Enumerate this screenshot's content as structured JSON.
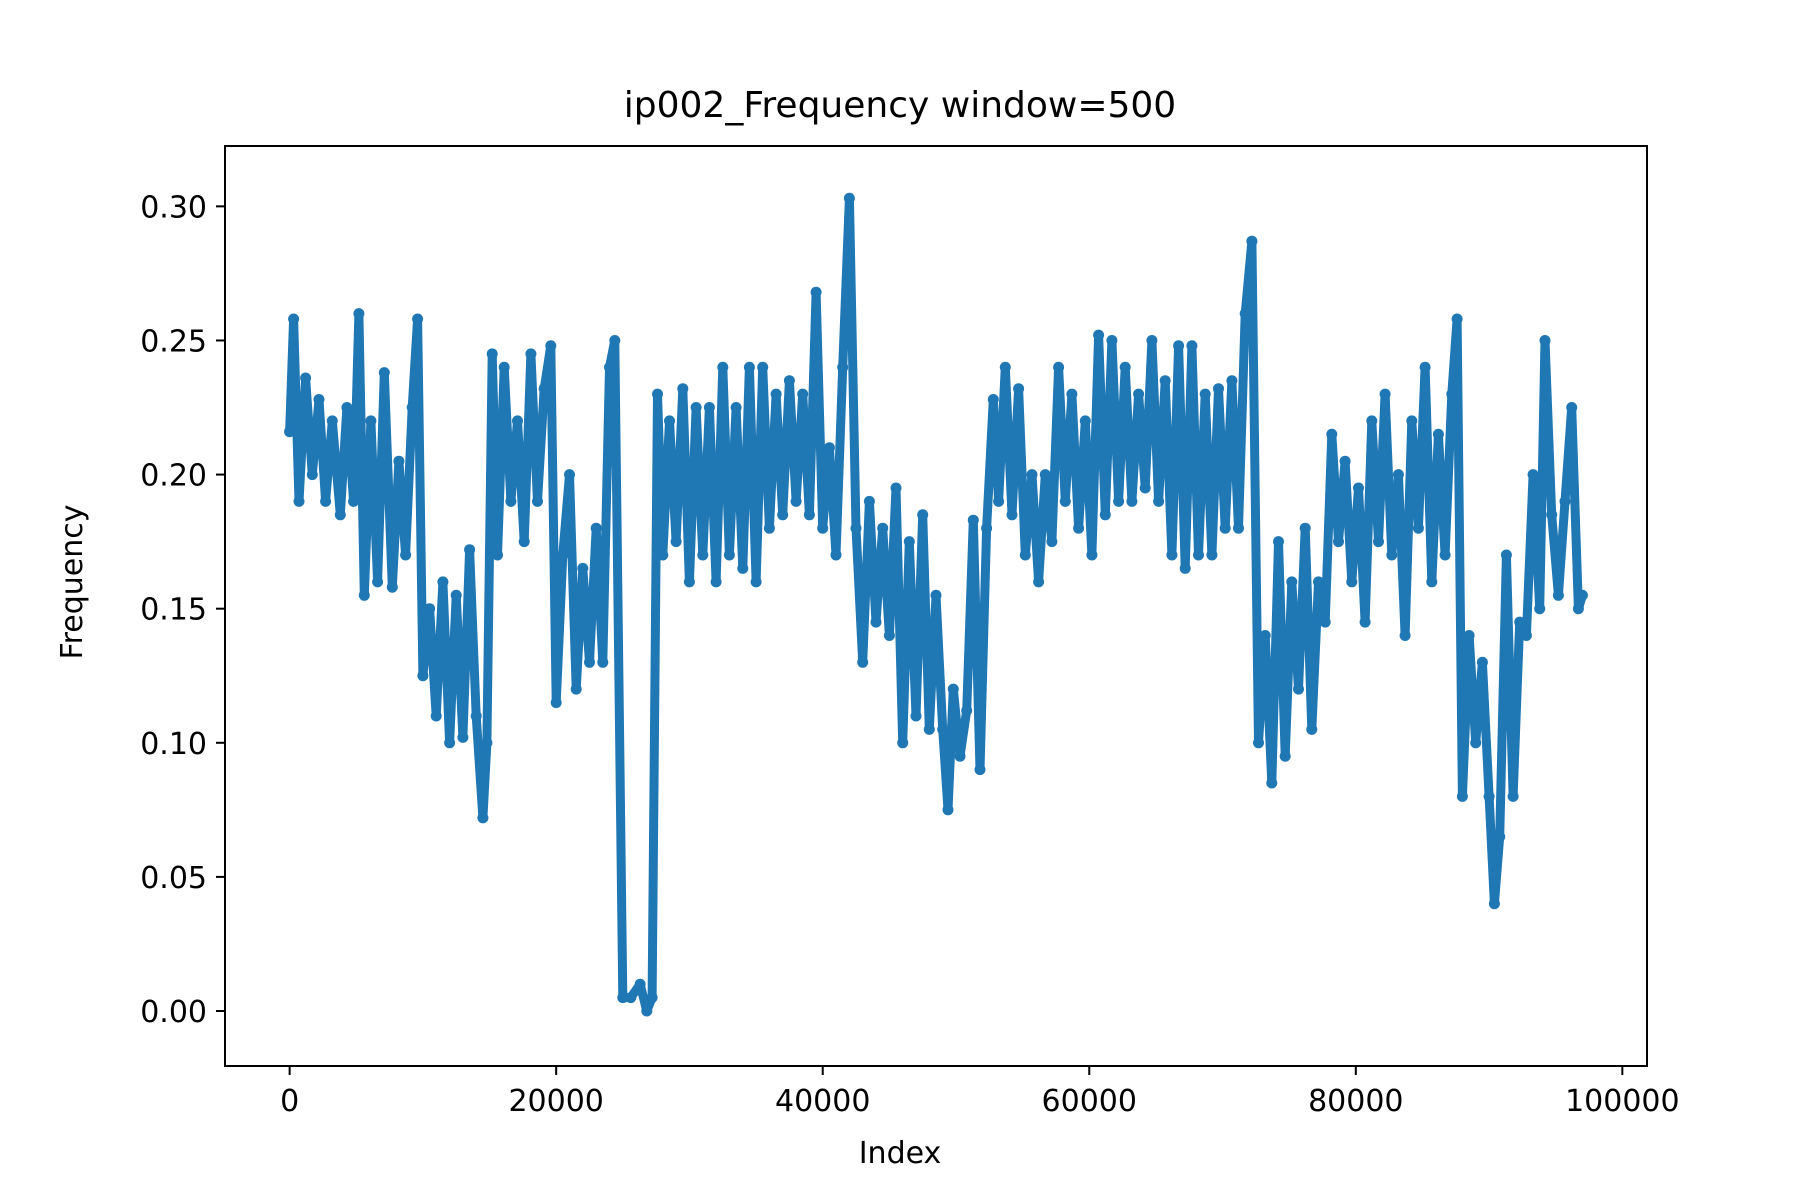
{
  "chart_data": {
    "type": "scatter",
    "title": "ip002_Frequency window=500",
    "xlabel": "Index",
    "ylabel": "Frequency",
    "xlim": [
      -4850,
      101850
    ],
    "ylim": [
      -0.0205,
      0.3225
    ],
    "xticks": [
      0,
      20000,
      40000,
      60000,
      80000,
      100000
    ],
    "xtick_labels": [
      "0",
      "20000",
      "40000",
      "60000",
      "80000",
      "100000"
    ],
    "yticks": [
      0.0,
      0.05,
      0.1,
      0.15,
      0.2,
      0.25,
      0.3
    ],
    "ytick_labels": [
      "0.00",
      "0.05",
      "0.10",
      "0.15",
      "0.20",
      "0.25",
      "0.30"
    ],
    "grid": false,
    "legend": "none",
    "series": [
      {
        "color": "#1f77b4",
        "points": [
          [
            0,
            0.216
          ],
          [
            300,
            0.258
          ],
          [
            700,
            0.19
          ],
          [
            1200,
            0.236
          ],
          [
            1700,
            0.2
          ],
          [
            2200,
            0.228
          ],
          [
            2700,
            0.19
          ],
          [
            3200,
            0.22
          ],
          [
            3800,
            0.185
          ],
          [
            4300,
            0.225
          ],
          [
            4800,
            0.19
          ],
          [
            5200,
            0.26
          ],
          [
            5600,
            0.155
          ],
          [
            6100,
            0.22
          ],
          [
            6600,
            0.16
          ],
          [
            7100,
            0.238
          ],
          [
            7700,
            0.158
          ],
          [
            8200,
            0.205
          ],
          [
            8700,
            0.17
          ],
          [
            9200,
            0.225
          ],
          [
            9600,
            0.258
          ],
          [
            10000,
            0.125
          ],
          [
            10500,
            0.15
          ],
          [
            11000,
            0.11
          ],
          [
            11500,
            0.16
          ],
          [
            12000,
            0.1
          ],
          [
            12500,
            0.155
          ],
          [
            13000,
            0.102
          ],
          [
            13500,
            0.172
          ],
          [
            14000,
            0.11
          ],
          [
            14500,
            0.072
          ],
          [
            14800,
            0.1
          ],
          [
            15200,
            0.245
          ],
          [
            15600,
            0.17
          ],
          [
            16100,
            0.24
          ],
          [
            16600,
            0.19
          ],
          [
            17100,
            0.22
          ],
          [
            17600,
            0.175
          ],
          [
            18100,
            0.245
          ],
          [
            18600,
            0.19
          ],
          [
            19100,
            0.232
          ],
          [
            19600,
            0.248
          ],
          [
            20000,
            0.115
          ],
          [
            20500,
            0.17
          ],
          [
            21000,
            0.2
          ],
          [
            21500,
            0.12
          ],
          [
            22000,
            0.165
          ],
          [
            22500,
            0.13
          ],
          [
            23000,
            0.18
          ],
          [
            23500,
            0.13
          ],
          [
            24000,
            0.24
          ],
          [
            24400,
            0.25
          ],
          [
            25000,
            0.005
          ],
          [
            25600,
            0.005
          ],
          [
            26300,
            0.01
          ],
          [
            26800,
            0.0
          ],
          [
            27200,
            0.005
          ],
          [
            27600,
            0.23
          ],
          [
            28000,
            0.17
          ],
          [
            28500,
            0.22
          ],
          [
            29000,
            0.175
          ],
          [
            29500,
            0.232
          ],
          [
            30000,
            0.16
          ],
          [
            30500,
            0.225
          ],
          [
            31000,
            0.17
          ],
          [
            31500,
            0.225
          ],
          [
            32000,
            0.16
          ],
          [
            32500,
            0.24
          ],
          [
            33000,
            0.17
          ],
          [
            33500,
            0.225
          ],
          [
            34000,
            0.165
          ],
          [
            34500,
            0.24
          ],
          [
            35000,
            0.16
          ],
          [
            35500,
            0.24
          ],
          [
            36000,
            0.18
          ],
          [
            36500,
            0.23
          ],
          [
            37000,
            0.185
          ],
          [
            37500,
            0.235
          ],
          [
            38000,
            0.19
          ],
          [
            38500,
            0.23
          ],
          [
            39000,
            0.185
          ],
          [
            39500,
            0.268
          ],
          [
            40000,
            0.18
          ],
          [
            40500,
            0.21
          ],
          [
            41000,
            0.17
          ],
          [
            41500,
            0.24
          ],
          [
            42000,
            0.303
          ],
          [
            42500,
            0.18
          ],
          [
            43000,
            0.13
          ],
          [
            43500,
            0.19
          ],
          [
            44000,
            0.145
          ],
          [
            44500,
            0.18
          ],
          [
            45000,
            0.14
          ],
          [
            45500,
            0.195
          ],
          [
            46000,
            0.1
          ],
          [
            46500,
            0.175
          ],
          [
            47000,
            0.11
          ],
          [
            47500,
            0.185
          ],
          [
            48000,
            0.105
          ],
          [
            48500,
            0.155
          ],
          [
            49000,
            0.105
          ],
          [
            49400,
            0.075
          ],
          [
            49800,
            0.12
          ],
          [
            50300,
            0.095
          ],
          [
            50800,
            0.112
          ],
          [
            51300,
            0.183
          ],
          [
            51800,
            0.09
          ],
          [
            52300,
            0.18
          ],
          [
            52800,
            0.228
          ],
          [
            53200,
            0.19
          ],
          [
            53700,
            0.24
          ],
          [
            54200,
            0.185
          ],
          [
            54700,
            0.232
          ],
          [
            55200,
            0.17
          ],
          [
            55700,
            0.2
          ],
          [
            56200,
            0.16
          ],
          [
            56700,
            0.2
          ],
          [
            57200,
            0.175
          ],
          [
            57700,
            0.24
          ],
          [
            58200,
            0.19
          ],
          [
            58700,
            0.23
          ],
          [
            59200,
            0.18
          ],
          [
            59700,
            0.22
          ],
          [
            60200,
            0.17
          ],
          [
            60700,
            0.252
          ],
          [
            61200,
            0.185
          ],
          [
            61700,
            0.25
          ],
          [
            62200,
            0.19
          ],
          [
            62700,
            0.24
          ],
          [
            63200,
            0.19
          ],
          [
            63700,
            0.23
          ],
          [
            64200,
            0.195
          ],
          [
            64700,
            0.25
          ],
          [
            65200,
            0.19
          ],
          [
            65700,
            0.235
          ],
          [
            66200,
            0.17
          ],
          [
            66700,
            0.248
          ],
          [
            67200,
            0.165
          ],
          [
            67700,
            0.248
          ],
          [
            68200,
            0.17
          ],
          [
            68700,
            0.23
          ],
          [
            69200,
            0.17
          ],
          [
            69700,
            0.232
          ],
          [
            70200,
            0.18
          ],
          [
            70700,
            0.235
          ],
          [
            71200,
            0.18
          ],
          [
            71700,
            0.26
          ],
          [
            72200,
            0.287
          ],
          [
            72700,
            0.1
          ],
          [
            73200,
            0.14
          ],
          [
            73700,
            0.085
          ],
          [
            74200,
            0.175
          ],
          [
            74700,
            0.095
          ],
          [
            75200,
            0.16
          ],
          [
            75700,
            0.12
          ],
          [
            76200,
            0.18
          ],
          [
            76700,
            0.105
          ],
          [
            77200,
            0.16
          ],
          [
            77700,
            0.145
          ],
          [
            78200,
            0.215
          ],
          [
            78700,
            0.175
          ],
          [
            79200,
            0.205
          ],
          [
            79700,
            0.16
          ],
          [
            80200,
            0.195
          ],
          [
            80700,
            0.145
          ],
          [
            81200,
            0.22
          ],
          [
            81700,
            0.175
          ],
          [
            82200,
            0.23
          ],
          [
            82700,
            0.17
          ],
          [
            83200,
            0.2
          ],
          [
            83700,
            0.14
          ],
          [
            84200,
            0.22
          ],
          [
            84700,
            0.18
          ],
          [
            85200,
            0.24
          ],
          [
            85700,
            0.16
          ],
          [
            86200,
            0.215
          ],
          [
            86700,
            0.17
          ],
          [
            87200,
            0.23
          ],
          [
            87600,
            0.258
          ],
          [
            88000,
            0.08
          ],
          [
            88500,
            0.14
          ],
          [
            89000,
            0.1
          ],
          [
            89500,
            0.13
          ],
          [
            90000,
            0.08
          ],
          [
            90400,
            0.04
          ],
          [
            90800,
            0.065
          ],
          [
            91300,
            0.17
          ],
          [
            91800,
            0.08
          ],
          [
            92300,
            0.145
          ],
          [
            92800,
            0.14
          ],
          [
            93300,
            0.2
          ],
          [
            93800,
            0.15
          ],
          [
            94200,
            0.25
          ],
          [
            94700,
            0.185
          ],
          [
            95200,
            0.155
          ],
          [
            95700,
            0.19
          ],
          [
            96200,
            0.225
          ],
          [
            96700,
            0.15
          ],
          [
            97000,
            0.155
          ]
        ]
      }
    ]
  }
}
